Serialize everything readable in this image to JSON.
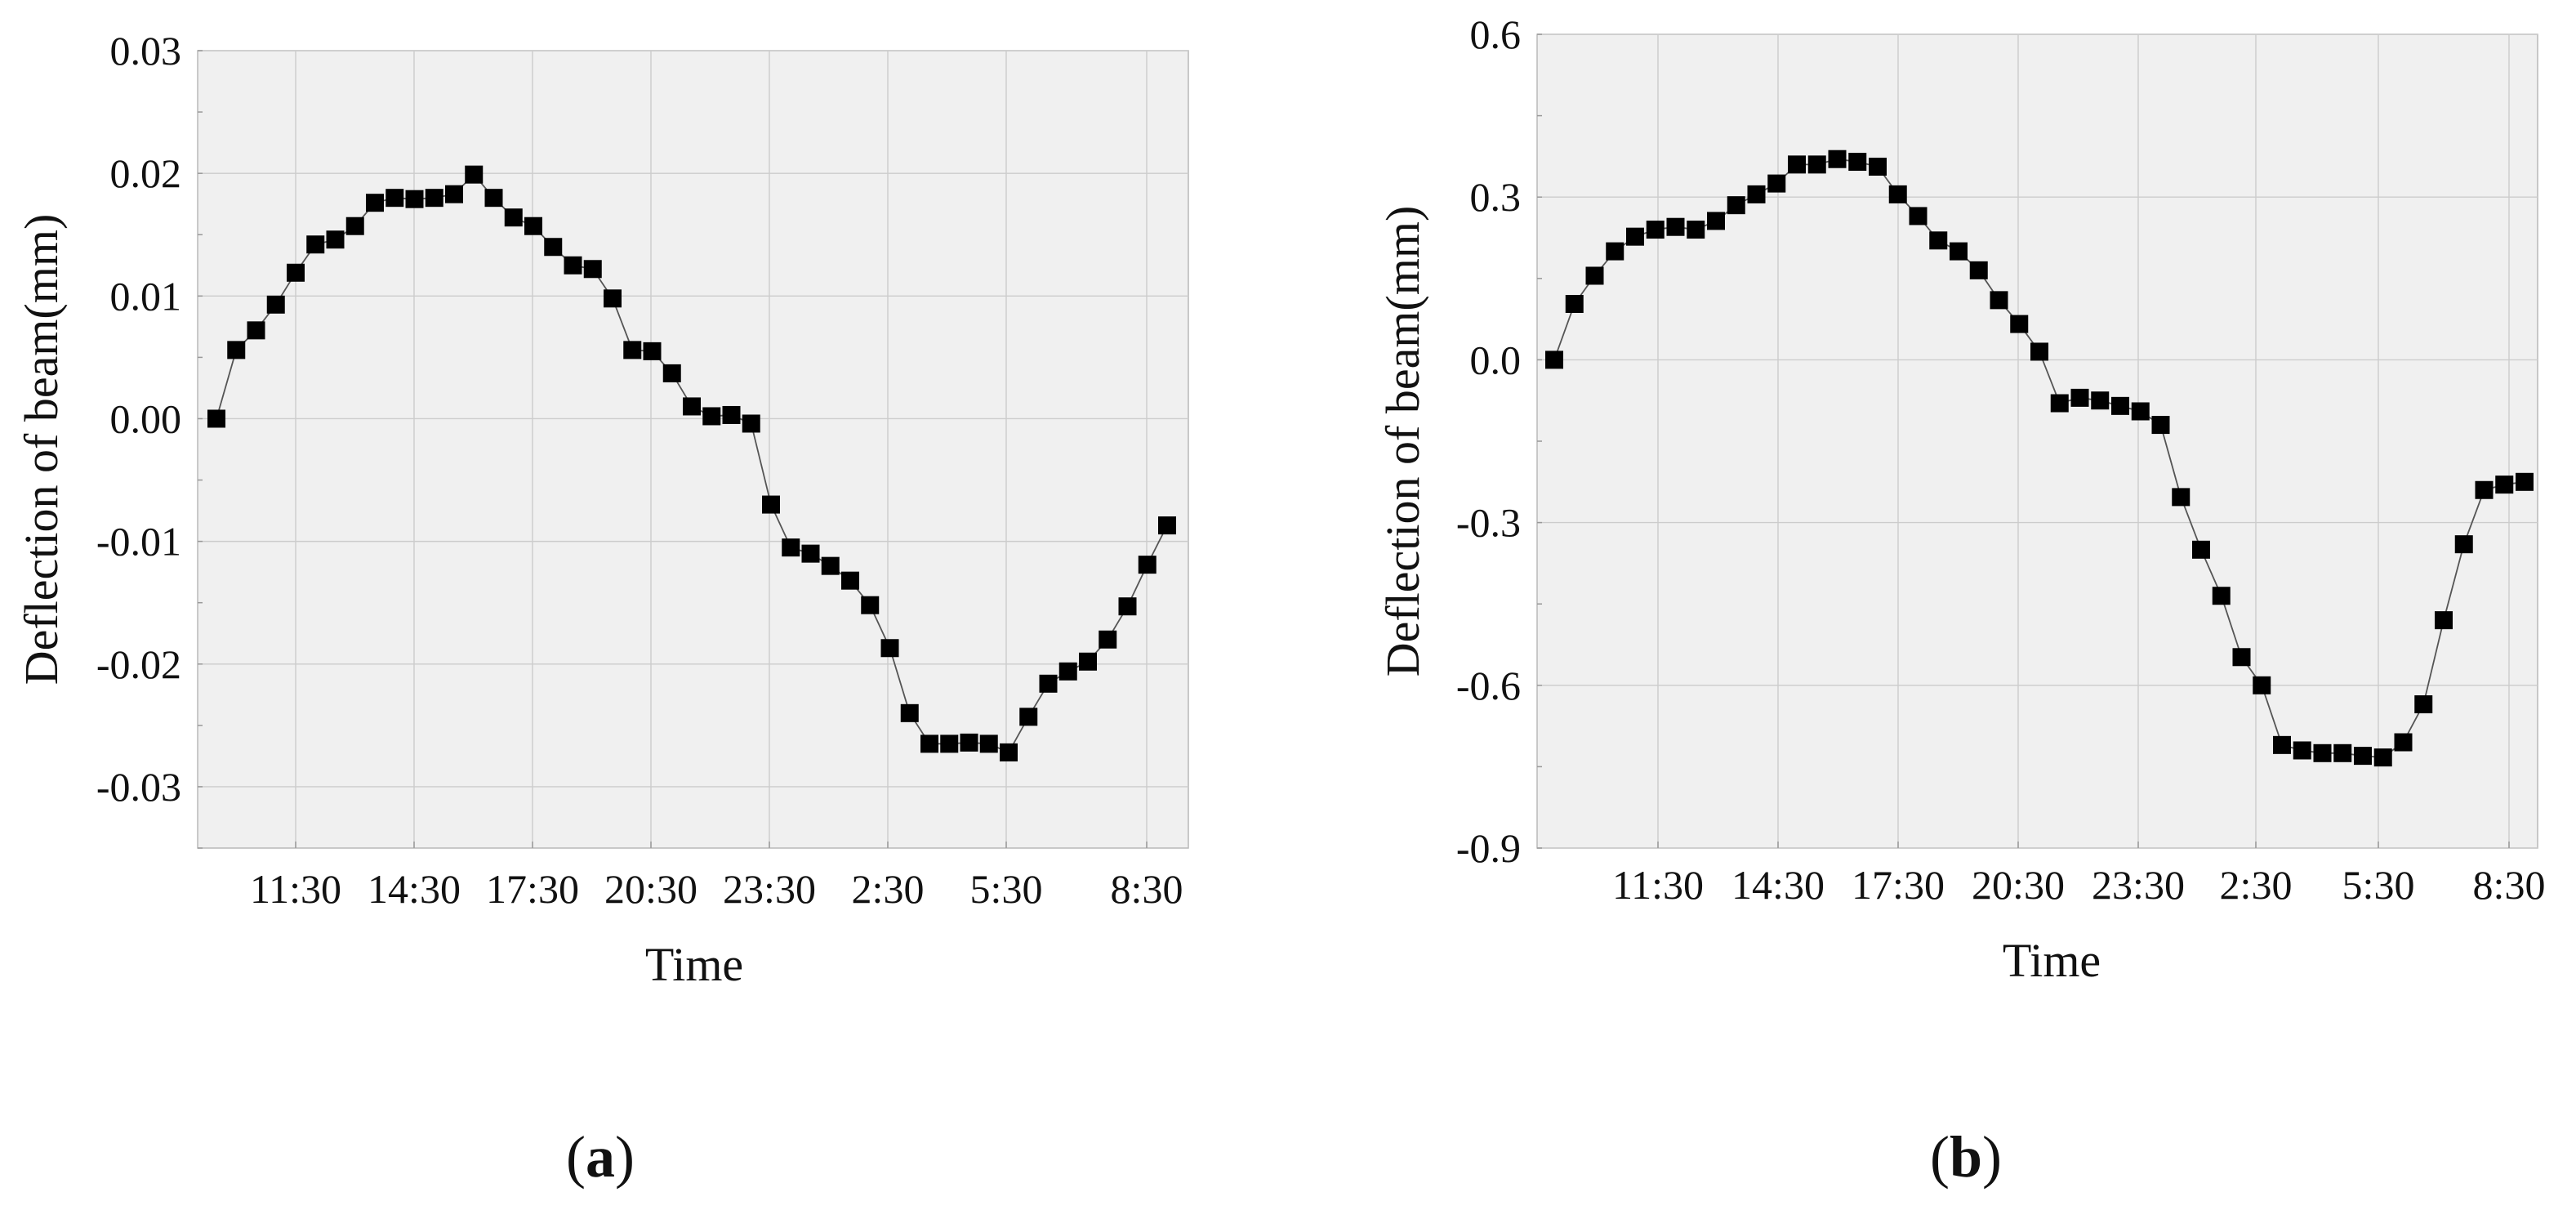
{
  "chart_data": [
    {
      "type": "scatter",
      "panel_label": "a",
      "xlabel": "Time",
      "ylabel": "Deflection of beam(mm)",
      "xtick_labels": [
        "11:30",
        "14:30",
        "17:30",
        "20:30",
        "23:30",
        "2:30",
        "5:30",
        "8:30"
      ],
      "ylim": [
        -0.035,
        0.03
      ],
      "yticks": [
        0.03,
        0.02,
        0.01,
        0.0,
        -0.01,
        -0.02,
        -0.03
      ],
      "ytick_labels": [
        "0.03",
        "0.02",
        "0.01",
        "0.00",
        "-0.01",
        "-0.02",
        "-0.03"
      ],
      "grid": true,
      "series": [
        {
          "marker": "square",
          "color": "#000000",
          "values": [
            0.0,
            0.0056,
            0.0072,
            0.0093,
            0.0119,
            0.0142,
            0.0146,
            0.0157,
            0.0176,
            0.018,
            0.0179,
            0.018,
            0.0183,
            0.0199,
            0.018,
            0.0164,
            0.0157,
            0.014,
            0.0125,
            0.0122,
            0.0098,
            0.0056,
            0.0055,
            0.0037,
            0.001,
            0.0002,
            0.0003,
            -0.0004,
            -0.007,
            -0.0105,
            -0.011,
            -0.012,
            -0.0132,
            -0.0152,
            -0.0187,
            -0.024,
            -0.0265,
            -0.0265,
            -0.0264,
            -0.0265,
            -0.0272,
            -0.0243,
            -0.0216,
            -0.0206,
            -0.0198,
            -0.018,
            -0.0153,
            -0.0119,
            -0.0087
          ]
        }
      ]
    },
    {
      "type": "scatter",
      "panel_label": "b",
      "xlabel": "Time",
      "ylabel": "Deflection of beam(mm)",
      "xtick_labels": [
        "11:30",
        "14:30",
        "17:30",
        "20:30",
        "23:30",
        "2:30",
        "5:30",
        "8:30"
      ],
      "ylim": [
        -0.9,
        0.6
      ],
      "yticks": [
        0.6,
        0.3,
        0.0,
        -0.3,
        -0.6,
        -0.9
      ],
      "ytick_labels": [
        "0.6",
        "0.3",
        "0.0",
        "-0.3",
        "-0.6",
        "-0.9"
      ],
      "grid": true,
      "series": [
        {
          "marker": "square",
          "color": "#000000",
          "values": [
            0.0,
            0.103,
            0.155,
            0.2,
            0.227,
            0.24,
            0.245,
            0.24,
            0.256,
            0.285,
            0.305,
            0.325,
            0.36,
            0.36,
            0.37,
            0.365,
            0.356,
            0.305,
            0.265,
            0.22,
            0.2,
            0.165,
            0.11,
            0.066,
            0.015,
            -0.08,
            -0.07,
            -0.075,
            -0.085,
            -0.095,
            -0.12,
            -0.253,
            -0.35,
            -0.435,
            -0.548,
            -0.6,
            -0.71,
            -0.72,
            -0.725,
            -0.725,
            -0.73,
            -0.733,
            -0.705,
            -0.635,
            -0.48,
            -0.34,
            -0.24,
            -0.23,
            -0.225
          ]
        }
      ]
    }
  ]
}
